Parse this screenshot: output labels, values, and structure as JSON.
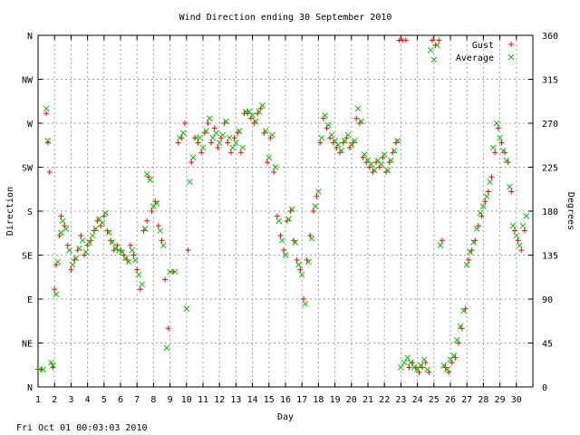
{
  "footer": {
    "timestamp": "Fri Oct 01 00:03:03 2010"
  },
  "chart_data": {
    "type": "scatter",
    "title": "Wind Direction ending 30 September 2010",
    "xlabel": "Day",
    "ylabel": "Direction",
    "y2label": "Degrees",
    "xlim": [
      1,
      31
    ],
    "ylim": [
      0,
      360
    ],
    "x_ticks": [
      1,
      2,
      3,
      4,
      5,
      6,
      7,
      8,
      9,
      10,
      11,
      12,
      13,
      14,
      15,
      16,
      17,
      18,
      19,
      20,
      21,
      22,
      23,
      24,
      25,
      26,
      27,
      28,
      29,
      30
    ],
    "y_ticks_left": [
      {
        "value": 0,
        "label": "N"
      },
      {
        "value": 45,
        "label": "NE"
      },
      {
        "value": 90,
        "label": "E"
      },
      {
        "value": 135,
        "label": "SE"
      },
      {
        "value": 180,
        "label": "S"
      },
      {
        "value": 225,
        "label": "SW"
      },
      {
        "value": 270,
        "label": "W"
      },
      {
        "value": 315,
        "label": "NW"
      },
      {
        "value": 360,
        "label": "N"
      }
    ],
    "y_ticks_right": [
      0,
      45,
      90,
      135,
      180,
      225,
      270,
      315,
      360
    ],
    "grid": true,
    "legend_position": "top-right",
    "series": [
      {
        "name": "Gust",
        "marker": "plus",
        "color": "#ff0000",
        "points": [
          [
            1.0,
            18
          ],
          [
            1.2,
            18
          ],
          [
            1.5,
            280
          ],
          [
            1.6,
            250
          ],
          [
            1.7,
            220
          ],
          [
            1.9,
            20
          ],
          [
            2.0,
            100
          ],
          [
            2.1,
            125
          ],
          [
            2.3,
            155
          ],
          [
            2.4,
            175
          ],
          [
            2.6,
            165
          ],
          [
            2.8,
            145
          ],
          [
            3.0,
            120
          ],
          [
            3.2,
            130
          ],
          [
            3.4,
            140
          ],
          [
            3.6,
            155
          ],
          [
            3.8,
            135
          ],
          [
            4.0,
            145
          ],
          [
            4.2,
            150
          ],
          [
            4.4,
            160
          ],
          [
            4.6,
            170
          ],
          [
            4.8,
            165
          ],
          [
            5.0,
            175
          ],
          [
            5.2,
            160
          ],
          [
            5.4,
            150
          ],
          [
            5.6,
            140
          ],
          [
            5.8,
            145
          ],
          [
            6.0,
            140
          ],
          [
            6.2,
            135
          ],
          [
            6.4,
            130
          ],
          [
            6.6,
            145
          ],
          [
            6.8,
            135
          ],
          [
            7.0,
            120
          ],
          [
            7.2,
            100
          ],
          [
            7.4,
            160
          ],
          [
            7.6,
            170
          ],
          [
            7.7,
            215
          ],
          [
            7.9,
            180
          ],
          [
            8.1,
            190
          ],
          [
            8.3,
            165
          ],
          [
            8.5,
            150
          ],
          [
            8.7,
            110
          ],
          [
            8.9,
            60
          ],
          [
            9.2,
            118
          ],
          [
            9.5,
            250
          ],
          [
            9.7,
            255
          ],
          [
            9.9,
            270
          ],
          [
            10.1,
            140
          ],
          [
            10.3,
            230
          ],
          [
            10.5,
            255
          ],
          [
            10.7,
            250
          ],
          [
            10.9,
            240
          ],
          [
            11.1,
            260
          ],
          [
            11.3,
            270
          ],
          [
            11.5,
            250
          ],
          [
            11.7,
            265
          ],
          [
            11.9,
            245
          ],
          [
            12.1,
            255
          ],
          [
            12.3,
            270
          ],
          [
            12.5,
            250
          ],
          [
            12.7,
            240
          ],
          [
            12.9,
            255
          ],
          [
            13.1,
            260
          ],
          [
            13.3,
            240
          ],
          [
            13.5,
            280
          ],
          [
            13.7,
            280
          ],
          [
            13.9,
            275
          ],
          [
            14.1,
            270
          ],
          [
            14.3,
            280
          ],
          [
            14.5,
            285
          ],
          [
            14.7,
            260
          ],
          [
            14.9,
            230
          ],
          [
            15.1,
            255
          ],
          [
            15.3,
            220
          ],
          [
            15.5,
            175
          ],
          [
            15.7,
            155
          ],
          [
            15.9,
            140
          ],
          [
            16.1,
            170
          ],
          [
            16.3,
            180
          ],
          [
            16.5,
            150
          ],
          [
            16.7,
            130
          ],
          [
            16.9,
            120
          ],
          [
            17.1,
            90
          ],
          [
            17.3,
            130
          ],
          [
            17.5,
            155
          ],
          [
            17.7,
            180
          ],
          [
            17.9,
            195
          ],
          [
            18.1,
            250
          ],
          [
            18.3,
            275
          ],
          [
            18.5,
            265
          ],
          [
            18.7,
            255
          ],
          [
            18.9,
            250
          ],
          [
            19.1,
            245
          ],
          [
            19.3,
            240
          ],
          [
            19.5,
            250
          ],
          [
            19.7,
            255
          ],
          [
            19.9,
            245
          ],
          [
            20.1,
            250
          ],
          [
            20.3,
            275
          ],
          [
            20.5,
            270
          ],
          [
            20.7,
            235
          ],
          [
            20.9,
            230
          ],
          [
            21.1,
            225
          ],
          [
            21.3,
            220
          ],
          [
            21.5,
            230
          ],
          [
            21.7,
            225
          ],
          [
            21.9,
            235
          ],
          [
            22.1,
            220
          ],
          [
            22.3,
            230
          ],
          [
            22.5,
            240
          ],
          [
            22.7,
            250
          ],
          [
            22.9,
            355
          ],
          [
            23.1,
            355
          ],
          [
            23.3,
            355
          ],
          [
            23.5,
            20
          ],
          [
            23.7,
            25
          ],
          [
            23.9,
            20
          ],
          [
            24.1,
            15
          ],
          [
            24.3,
            20
          ],
          [
            24.5,
            25
          ],
          [
            24.7,
            15
          ],
          [
            24.9,
            355
          ],
          [
            25.1,
            350
          ],
          [
            25.3,
            355
          ],
          [
            25.5,
            150
          ],
          [
            25.7,
            20
          ],
          [
            25.9,
            15
          ],
          [
            26.1,
            25
          ],
          [
            26.3,
            30
          ],
          [
            26.5,
            45
          ],
          [
            26.7,
            60
          ],
          [
            26.9,
            80
          ],
          [
            27.1,
            130
          ],
          [
            27.3,
            140
          ],
          [
            27.5,
            150
          ],
          [
            27.7,
            165
          ],
          [
            27.9,
            175
          ],
          [
            28.1,
            190
          ],
          [
            28.3,
            200
          ],
          [
            28.5,
            215
          ],
          [
            28.7,
            240
          ],
          [
            28.9,
            265
          ],
          [
            29.1,
            250
          ],
          [
            29.3,
            240
          ],
          [
            29.5,
            230
          ],
          [
            29.7,
            200
          ],
          [
            29.9,
            160
          ],
          [
            30.1,
            150
          ],
          [
            30.3,
            140
          ],
          [
            30.5,
            160
          ]
        ]
      },
      {
        "name": "Average",
        "marker": "cross",
        "color": "#00c000",
        "points": [
          [
            1.1,
            18
          ],
          [
            1.3,
            18
          ],
          [
            1.5,
            285
          ],
          [
            1.6,
            252
          ],
          [
            1.8,
            25
          ],
          [
            1.9,
            22
          ],
          [
            2.1,
            95
          ],
          [
            2.2,
            128
          ],
          [
            2.4,
            158
          ],
          [
            2.5,
            170
          ],
          [
            2.7,
            162
          ],
          [
            2.9,
            140
          ],
          [
            3.1,
            125
          ],
          [
            3.3,
            132
          ],
          [
            3.5,
            142
          ],
          [
            3.7,
            150
          ],
          [
            3.9,
            138
          ],
          [
            4.1,
            148
          ],
          [
            4.3,
            155
          ],
          [
            4.5,
            162
          ],
          [
            4.7,
            172
          ],
          [
            4.9,
            168
          ],
          [
            5.1,
            178
          ],
          [
            5.3,
            158
          ],
          [
            5.5,
            148
          ],
          [
            5.7,
            142
          ],
          [
            5.9,
            140
          ],
          [
            6.1,
            138
          ],
          [
            6.3,
            132
          ],
          [
            6.5,
            128
          ],
          [
            6.7,
            140
          ],
          [
            6.9,
            130
          ],
          [
            7.1,
            115
          ],
          [
            7.3,
            105
          ],
          [
            7.5,
            162
          ],
          [
            7.6,
            218
          ],
          [
            7.8,
            212
          ],
          [
            8.0,
            185
          ],
          [
            8.2,
            188
          ],
          [
            8.4,
            160
          ],
          [
            8.6,
            145
          ],
          [
            8.8,
            40
          ],
          [
            9.0,
            118
          ],
          [
            9.3,
            118
          ],
          [
            9.6,
            255
          ],
          [
            9.8,
            260
          ],
          [
            10.0,
            80
          ],
          [
            10.2,
            210
          ],
          [
            10.4,
            235
          ],
          [
            10.6,
            255
          ],
          [
            10.8,
            255
          ],
          [
            11.0,
            245
          ],
          [
            11.2,
            262
          ],
          [
            11.4,
            275
          ],
          [
            11.6,
            255
          ],
          [
            11.8,
            260
          ],
          [
            12.0,
            250
          ],
          [
            12.2,
            258
          ],
          [
            12.4,
            272
          ],
          [
            12.6,
            255
          ],
          [
            12.8,
            245
          ],
          [
            13.0,
            250
          ],
          [
            13.2,
            262
          ],
          [
            13.4,
            245
          ],
          [
            13.6,
            282
          ],
          [
            13.8,
            282
          ],
          [
            14.0,
            278
          ],
          [
            14.2,
            272
          ],
          [
            14.4,
            282
          ],
          [
            14.6,
            288
          ],
          [
            14.8,
            262
          ],
          [
            15.0,
            235
          ],
          [
            15.2,
            258
          ],
          [
            15.4,
            225
          ],
          [
            15.6,
            170
          ],
          [
            15.8,
            150
          ],
          [
            16.0,
            135
          ],
          [
            16.2,
            172
          ],
          [
            16.4,
            182
          ],
          [
            16.6,
            148
          ],
          [
            16.8,
            125
          ],
          [
            17.0,
            115
          ],
          [
            17.2,
            85
          ],
          [
            17.4,
            128
          ],
          [
            17.6,
            152
          ],
          [
            17.8,
            185
          ],
          [
            18.0,
            200
          ],
          [
            18.2,
            255
          ],
          [
            18.4,
            278
          ],
          [
            18.6,
            268
          ],
          [
            18.8,
            258
          ],
          [
            19.0,
            252
          ],
          [
            19.2,
            248
          ],
          [
            19.4,
            242
          ],
          [
            19.6,
            252
          ],
          [
            19.8,
            258
          ],
          [
            20.0,
            248
          ],
          [
            20.2,
            252
          ],
          [
            20.4,
            285
          ],
          [
            20.6,
            272
          ],
          [
            20.8,
            238
          ],
          [
            21.0,
            232
          ],
          [
            21.2,
            228
          ],
          [
            21.4,
            222
          ],
          [
            21.6,
            232
          ],
          [
            21.8,
            228
          ],
          [
            22.0,
            238
          ],
          [
            22.2,
            222
          ],
          [
            22.4,
            232
          ],
          [
            22.6,
            242
          ],
          [
            22.8,
            252
          ],
          [
            23.0,
            20
          ],
          [
            23.2,
            25
          ],
          [
            23.4,
            30
          ],
          [
            23.6,
            25
          ],
          [
            23.8,
            20
          ],
          [
            24.0,
            18
          ],
          [
            24.2,
            22
          ],
          [
            24.4,
            28
          ],
          [
            24.6,
            18
          ],
          [
            24.8,
            345
          ],
          [
            25.0,
            335
          ],
          [
            25.2,
            350
          ],
          [
            25.4,
            145
          ],
          [
            25.6,
            22
          ],
          [
            25.8,
            18
          ],
          [
            26.0,
            28
          ],
          [
            26.2,
            32
          ],
          [
            26.4,
            48
          ],
          [
            26.6,
            62
          ],
          [
            26.8,
            78
          ],
          [
            27.0,
            125
          ],
          [
            27.2,
            138
          ],
          [
            27.4,
            148
          ],
          [
            27.6,
            162
          ],
          [
            27.8,
            178
          ],
          [
            28.0,
            185
          ],
          [
            28.2,
            195
          ],
          [
            28.4,
            210
          ],
          [
            28.6,
            245
          ],
          [
            28.8,
            270
          ],
          [
            29.0,
            255
          ],
          [
            29.2,
            242
          ],
          [
            29.4,
            232
          ],
          [
            29.6,
            205
          ],
          [
            29.8,
            165
          ],
          [
            30.0,
            155
          ],
          [
            30.2,
            145
          ],
          [
            30.4,
            165
          ],
          [
            30.6,
            175
          ]
        ]
      }
    ]
  }
}
